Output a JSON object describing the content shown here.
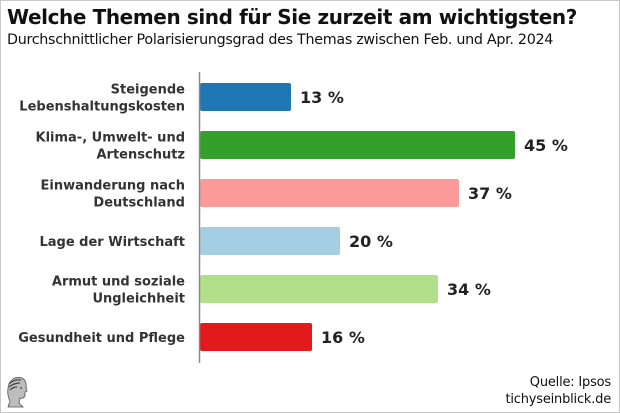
{
  "header": {
    "title": "Welche Themen sind für Sie zurzeit am wichtigsten?",
    "subtitle": "Durchschnittlicher Polarisierungsgrad des Themas zwischen Feb. und Apr. 2024"
  },
  "footer": {
    "source": "Quelle: Ipsos",
    "site": "tichyseinblick.de",
    "logo_icon": "classical-head-logo-icon"
  },
  "chart_data": {
    "type": "bar",
    "orientation": "horizontal",
    "title": "Welche Themen sind für Sie zurzeit am wichtigsten?",
    "subtitle": "Durchschnittlicher Polarisierungsgrad des Themas zwischen Feb. und Apr. 2024",
    "xlabel": "",
    "ylabel": "",
    "xlim": [
      0,
      45
    ],
    "grid": false,
    "value_suffix": " %",
    "categories": [
      [
        "Steigende",
        "Lebenshaltungskosten"
      ],
      [
        "Klima-, Umwelt- und",
        "Artenschutz"
      ],
      [
        "Einwanderung nach",
        "Deutschland"
      ],
      [
        "Lage der Wirtschaft"
      ],
      [
        "Armut und soziale",
        "Ungleichheit"
      ],
      [
        "Gesundheit und Pflege"
      ]
    ],
    "values": [
      13,
      45,
      37,
      20,
      34,
      16
    ],
    "value_labels": [
      "13 %",
      "45 %",
      "37 %",
      "20 %",
      "34 %",
      "16 %"
    ],
    "colors": [
      "#1f78b4",
      "#33a02c",
      "#fb9a99",
      "#a6cee3",
      "#b2df8a",
      "#e31a1c"
    ],
    "axis_color": "#8c8c8c"
  }
}
